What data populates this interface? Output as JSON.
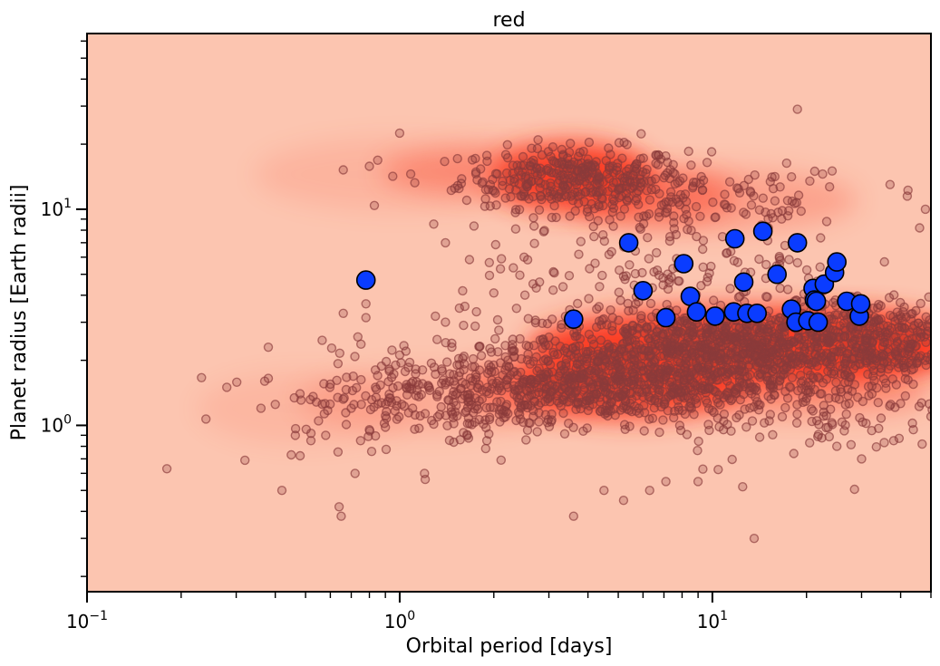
{
  "chart_data": {
    "type": "scatter",
    "title": "red",
    "xlabel": "Orbital period [days]",
    "ylabel": "Planet radius [Earth radii]",
    "xscale": "log",
    "yscale": "log",
    "xlim": [
      0.1,
      50
    ],
    "ylim": [
      0.17,
      65
    ],
    "x_ticks": [
      {
        "value": 0.1,
        "base": "10",
        "exp": "−1"
      },
      {
        "value": 1,
        "base": "10",
        "exp": "0"
      },
      {
        "value": 10,
        "base": "10",
        "exp": "1"
      }
    ],
    "y_ticks": [
      {
        "value": 1,
        "base": "10",
        "exp": "0"
      },
      {
        "value": 10,
        "base": "10",
        "exp": "1"
      }
    ],
    "grid": false,
    "background_density": {
      "type": "kde",
      "colormap": "Reds",
      "base_color": "#fcc5b0",
      "peak_color": "#fb3b24",
      "peaks": [
        {
          "period": 3.6,
          "radius": 14.0
        },
        {
          "period": 12.0,
          "radius": 2.3
        },
        {
          "period": 5.5,
          "radius": 1.6
        },
        {
          "period": 30.0,
          "radius": 2.4
        }
      ]
    },
    "series": [
      {
        "marker_color": "#0a3cff",
        "points": [
          [
            0.78,
            4.7
          ],
          [
            3.6,
            3.1
          ],
          [
            5.4,
            7.0
          ],
          [
            6.0,
            4.2
          ],
          [
            7.1,
            3.15
          ],
          [
            8.1,
            5.6
          ],
          [
            8.5,
            3.95
          ],
          [
            8.9,
            3.35
          ],
          [
            10.2,
            3.2
          ],
          [
            11.8,
            7.3
          ],
          [
            11.7,
            3.35
          ],
          [
            12.6,
            4.6
          ],
          [
            12.9,
            3.3
          ],
          [
            13.9,
            3.3
          ],
          [
            14.5,
            7.9
          ],
          [
            16.1,
            5.0
          ],
          [
            17.9,
            3.45
          ],
          [
            18.7,
            7.0
          ],
          [
            18.5,
            3.0
          ],
          [
            20.2,
            3.05
          ],
          [
            21.0,
            4.3
          ],
          [
            21.2,
            3.8
          ],
          [
            21.5,
            3.75
          ],
          [
            21.8,
            3.0
          ],
          [
            22.8,
            4.5
          ],
          [
            24.6,
            5.1
          ],
          [
            25.0,
            5.7
          ],
          [
            26.9,
            3.75
          ],
          [
            29.5,
            3.2
          ],
          [
            29.8,
            3.65
          ]
        ]
      },
      {
        "marker_color": "#8b3a3a",
        "marker_alpha": 0.5,
        "points": [
          [
            0.18,
            0.63
          ],
          [
            0.24,
            1.07
          ],
          [
            0.28,
            1.5
          ],
          [
            0.32,
            0.69
          ],
          [
            0.36,
            1.2
          ],
          [
            0.37,
            1.6
          ],
          [
            0.38,
            1.65
          ],
          [
            0.38,
            2.3
          ],
          [
            0.4,
            1.25
          ],
          [
            0.42,
            0.5
          ],
          [
            0.45,
            0.73
          ],
          [
            0.48,
            1.4
          ],
          [
            0.52,
            0.85
          ],
          [
            0.55,
            1.05
          ],
          [
            0.58,
            0.9
          ],
          [
            0.6,
            1.55
          ],
          [
            0.64,
            0.42
          ],
          [
            0.65,
            0.38
          ],
          [
            0.66,
            3.3
          ],
          [
            0.66,
            15.2
          ],
          [
            0.7,
            1.2
          ],
          [
            0.72,
            0.6
          ],
          [
            0.75,
            0.85
          ],
          [
            0.78,
            3.65
          ],
          [
            0.78,
            3.15
          ],
          [
            0.8,
            15.8
          ],
          [
            0.83,
            10.4
          ],
          [
            0.85,
            1.7
          ],
          [
            0.9,
            0.98
          ],
          [
            0.95,
            14.2
          ],
          [
            0.97,
            1.9
          ],
          [
            1.0,
            22.5
          ],
          [
            1.05,
            1.5
          ],
          [
            1.1,
            1.2
          ],
          [
            1.2,
            0.6
          ],
          [
            1.3,
            3.2
          ],
          [
            1.4,
            3.0
          ],
          [
            1.4,
            7.0
          ],
          [
            1.5,
            12.5
          ],
          [
            1.6,
            2.9
          ],
          [
            1.8,
            1.8
          ],
          [
            1.9,
            0.85
          ],
          [
            2.0,
            4.1
          ],
          [
            2.1,
            5.3
          ],
          [
            2.3,
            2.5
          ],
          [
            2.5,
            6.0
          ],
          [
            2.8,
            4.6
          ],
          [
            3.3,
            18.9
          ],
          [
            3.6,
            0.38
          ],
          [
            4.5,
            0.5
          ],
          [
            5.2,
            0.45
          ],
          [
            6.3,
            0.5
          ],
          [
            7.1,
            0.55
          ],
          [
            9.0,
            0.55
          ],
          [
            12.5,
            0.52
          ],
          [
            13.6,
            0.3
          ],
          [
            18.7,
            29.0
          ],
          [
            20.5,
            13.5
          ],
          [
            37.0,
            13.0
          ],
          [
            38.0,
            0.85
          ],
          [
            42.0,
            11.5
          ],
          [
            46.0,
            8.2
          ],
          [
            48.0,
            10.0
          ],
          [
            25.0,
            0.8
          ],
          [
            30.0,
            0.7
          ]
        ]
      }
    ]
  }
}
